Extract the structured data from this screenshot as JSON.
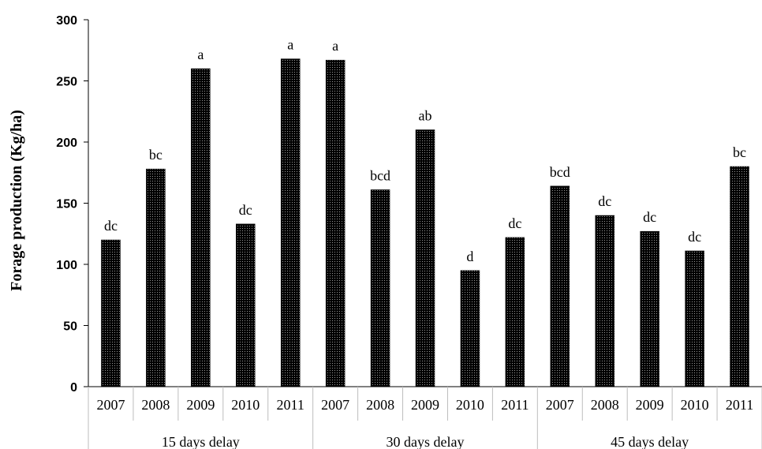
{
  "chart_data": {
    "type": "bar",
    "ylabel": "Forage production (Kg/ha)",
    "xlabel": "",
    "ylim": [
      0,
      300
    ],
    "yticks": [
      "0",
      "50",
      "100",
      "150",
      "200",
      "250",
      "300"
    ],
    "grid": false,
    "legend": "none",
    "bar_color": "#1a1a1a",
    "groups": [
      {
        "name": "15 days delay",
        "categories": [
          "2007",
          "2008",
          "2009",
          "2010",
          "2011"
        ],
        "values": [
          120,
          178,
          260,
          133,
          268
        ],
        "labels": [
          "dc",
          "bc",
          "a",
          "dc",
          "a"
        ]
      },
      {
        "name": "30 days delay",
        "categories": [
          "2007",
          "2008",
          "2009",
          "2010",
          "2011"
        ],
        "values": [
          267,
          161,
          210,
          95,
          122
        ],
        "labels": [
          "a",
          "bcd",
          "ab",
          "d",
          "dc"
        ]
      },
      {
        "name": "45 days delay",
        "categories": [
          "2007",
          "2008",
          "2009",
          "2010",
          "2011"
        ],
        "values": [
          164,
          140,
          127,
          111,
          180
        ],
        "labels": [
          "bcd",
          "dc",
          "dc",
          "dc",
          "bc"
        ]
      }
    ]
  }
}
